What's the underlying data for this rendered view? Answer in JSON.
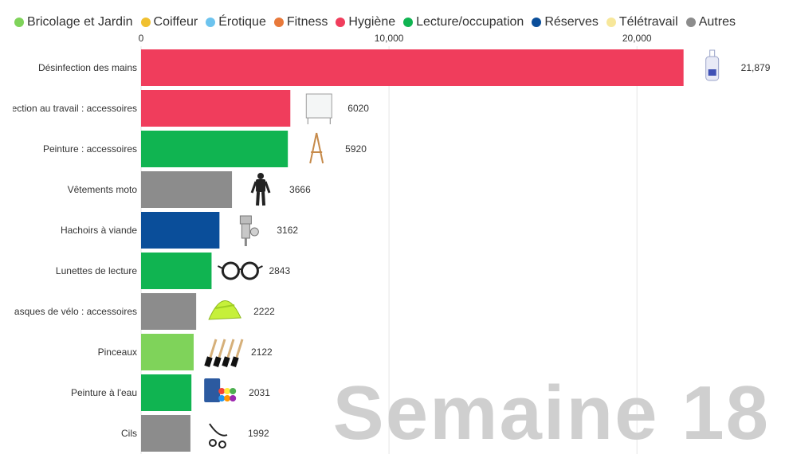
{
  "legend": [
    {
      "label": "Bricolage et Jardin",
      "color": "#7fd35a"
    },
    {
      "label": "Coiffeur",
      "color": "#f0c030"
    },
    {
      "label": "Érotique",
      "color": "#6cc3ee"
    },
    {
      "label": "Fitness",
      "color": "#e8793a"
    },
    {
      "label": "Hygiène",
      "color": "#f03d5c"
    },
    {
      "label": "Lecture/occupation",
      "color": "#10b451"
    },
    {
      "label": "Réserves",
      "color": "#0a4e9a"
    },
    {
      "label": "Télétravail",
      "color": "#f7e79a"
    },
    {
      "label": "Autres",
      "color": "#8c8c8c"
    }
  ],
  "watermark": "Semaine 18",
  "chart_data": {
    "type": "bar",
    "orientation": "horizontal",
    "xlim": [
      0,
      22500
    ],
    "xticks": [
      0,
      10000,
      20000
    ],
    "xtick_labels": [
      "0",
      "10,000",
      "20,000"
    ],
    "grid": true,
    "legend_position": "top",
    "categories": [
      "Désinfection des mains",
      "ection au travail : accessoires",
      "Peinture : accessoires",
      "Vêtements moto",
      "Hachoirs à viande",
      "Lunettes de lecture",
      "asques de vélo : accessoires",
      "Pinceaux",
      "Peinture à l'eau",
      "Cils"
    ],
    "values": [
      21879,
      6020,
      5920,
      3666,
      3162,
      2843,
      2222,
      2122,
      2031,
      1992
    ],
    "value_labels": [
      "21,879",
      "6020",
      "5920",
      "3666",
      "3162",
      "2843",
      "2222",
      "2122",
      "2031",
      "1992"
    ],
    "bar_groups": [
      "Hygiène",
      "Hygiène",
      "Lecture/occupation",
      "Autres",
      "Réserves",
      "Lecture/occupation",
      "Autres",
      "Bricolage et Jardin",
      "Lecture/occupation",
      "Autres"
    ],
    "bar_colors": [
      "#f03d5c",
      "#f03d5c",
      "#10b451",
      "#8c8c8c",
      "#0a4e9a",
      "#10b451",
      "#8c8c8c",
      "#7fd35a",
      "#10b451",
      "#8c8c8c"
    ],
    "icons": [
      "sanitizer-bottle-icon",
      "glass-screen-icon",
      "easel-icon",
      "motorcycle-suit-icon",
      "meat-grinder-icon",
      "glasses-icon",
      "helmet-cover-icon",
      "paintbrushes-icon",
      "watercolor-set-icon",
      "eyelash-curler-icon"
    ]
  }
}
